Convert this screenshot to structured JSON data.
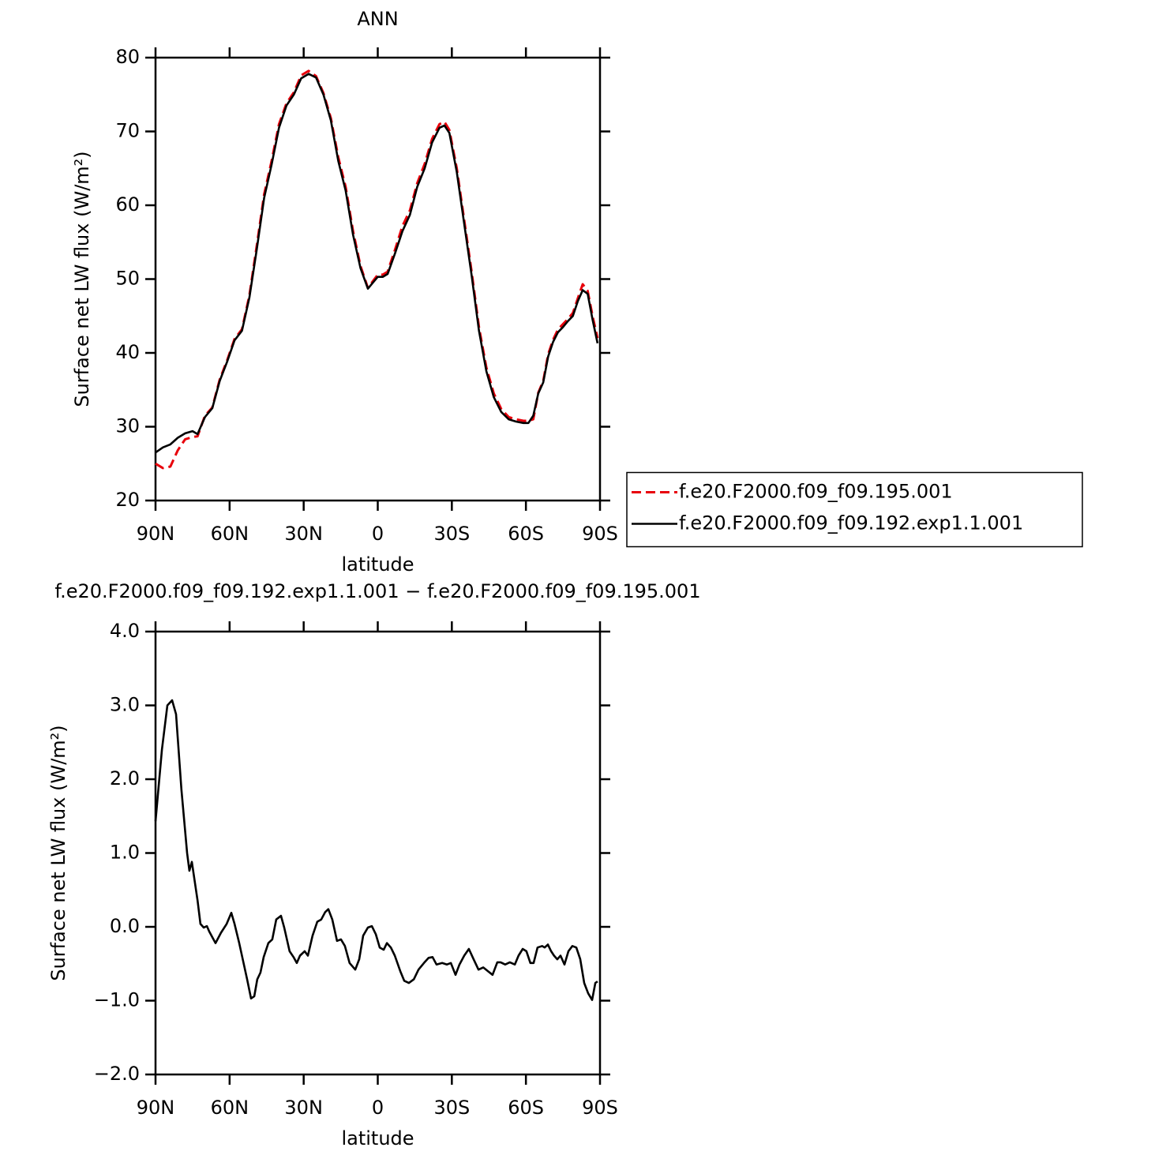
{
  "chart_data": [
    {
      "type": "line",
      "title": "ANN",
      "xlabel": "latitude",
      "ylabel": "Surface net LW flux (W/m²)",
      "x": [
        90,
        87,
        84,
        81,
        78,
        75,
        73,
        70,
        67,
        64,
        61,
        58,
        55,
        52,
        49,
        46,
        43,
        40,
        37,
        34,
        31,
        28,
        25,
        22,
        19,
        16,
        13,
        10,
        7,
        4,
        2,
        0,
        -2,
        -4,
        -7,
        -10,
        -13,
        -16,
        -19,
        -22,
        -25,
        -27,
        -29,
        -32,
        -35,
        -38,
        -41,
        -44,
        -47,
        -50,
        -53,
        -56,
        -59,
        -61,
        -63,
        -65,
        -67,
        -69,
        -71,
        -73,
        -75,
        -77,
        -79,
        -81,
        -83,
        -85,
        -87,
        -89
      ],
      "series": [
        {
          "name": "f.e20.F2000.f09_f09.195.001",
          "color": "#e8000b",
          "linestyle": "dashed",
          "values": [
            25.0,
            24.4,
            24.6,
            26.8,
            28.3,
            28.6,
            28.7,
            31.5,
            32.6,
            36.4,
            39.0,
            41.9,
            43.2,
            47.8,
            54.5,
            61.5,
            66.0,
            71.0,
            73.8,
            75.3,
            77.6,
            78.2,
            77.5,
            75.2,
            71.8,
            66.5,
            62.5,
            56.5,
            51.8,
            48.8,
            49.7,
            50.6,
            50.6,
            51.0,
            54.0,
            57.2,
            59.3,
            63.0,
            65.6,
            69.0,
            71.0,
            71.3,
            70.2,
            65.0,
            58.0,
            51.0,
            43.5,
            38.0,
            34.5,
            32.4,
            31.3,
            31.0,
            30.8,
            30.8,
            31.0,
            34.6,
            36.2,
            39.8,
            41.8,
            43.2,
            43.9,
            44.6,
            45.4,
            47.4,
            49.3,
            48.4,
            45.0,
            42.0
          ]
        },
        {
          "name": "f.e20.F2000.f09_f09.192.exp1.1.001",
          "color": "#000000",
          "linestyle": "solid",
          "values": [
            26.5,
            27.2,
            27.6,
            28.5,
            29.1,
            29.4,
            29.0,
            31.3,
            32.5,
            36.2,
            38.8,
            41.7,
            43.0,
            47.5,
            54.0,
            61.0,
            65.5,
            70.5,
            73.5,
            75.0,
            77.2,
            77.8,
            77.3,
            75.0,
            71.5,
            66.0,
            62.0,
            56.0,
            51.5,
            48.7,
            49.5,
            50.3,
            50.3,
            50.7,
            53.5,
            56.5,
            58.7,
            62.5,
            65.0,
            68.5,
            70.5,
            70.8,
            69.8,
            64.5,
            57.5,
            50.5,
            43.0,
            37.5,
            34.0,
            32.0,
            31.0,
            30.7,
            30.5,
            30.5,
            31.5,
            34.5,
            36.0,
            39.5,
            41.5,
            42.8,
            43.5,
            44.3,
            45.0,
            47.0,
            48.5,
            48.0,
            44.5,
            41.3
          ]
        }
      ],
      "xlim": [
        90,
        -90
      ],
      "xticks": [
        {
          "value": 90,
          "label": "90N"
        },
        {
          "value": 60,
          "label": "60N"
        },
        {
          "value": 30,
          "label": "30N"
        },
        0,
        {
          "value": -30,
          "label": "30S"
        },
        {
          "value": -60,
          "label": "60S"
        },
        {
          "value": -90,
          "label": "90S"
        }
      ],
      "ylim": [
        20,
        80
      ],
      "yticks": [
        20,
        30,
        40,
        50,
        60,
        70,
        80
      ],
      "legend": "right"
    },
    {
      "type": "line",
      "title": "f.e20.F2000.f09_f09.192.exp1.1.001 − f.e20.F2000.f09_f09.195.001",
      "xlabel": "latitude",
      "ylabel": "Surface net LW flux (W/m²)",
      "x": [
        90,
        87.4,
        85.2,
        83.3,
        81.7,
        79.5,
        77.2,
        76.3,
        75.3,
        73,
        71.8,
        70.5,
        69.2,
        68.3,
        65.7,
        63.5,
        61.2,
        59.3,
        58,
        56.1,
        52.9,
        51.3,
        50,
        48.8,
        47.5,
        46.2,
        44.3,
        42.7,
        41.1,
        39.2,
        37.9,
        35.7,
        34.1,
        32.8,
        31.5,
        29.6,
        28.3,
        26.4,
        24.5,
        22.9,
        21.3,
        20,
        18.4,
        16.5,
        14.9,
        13.3,
        11.4,
        9.1,
        7.5,
        5.9,
        4,
        2.4,
        0.8,
        -0.8,
        -2.4,
        -3.7,
        -5.3,
        -6.9,
        -9.1,
        -10.7,
        -12.6,
        -14.6,
        -16.5,
        -18.7,
        -20.6,
        -22.2,
        -23.8,
        -26.1,
        -28,
        -29.6,
        -31.5,
        -33.1,
        -35,
        -36.9,
        -38.8,
        -40.8,
        -42.7,
        -44.6,
        -46.5,
        -48.4,
        -49.7,
        -51.6,
        -53.5,
        -55.5,
        -57,
        -58.7,
        -60.2,
        -61.8,
        -63.1,
        -64.7,
        -66.6,
        -67.6,
        -68.9,
        -70.2,
        -71.4,
        -72.7,
        -74,
        -75.6,
        -77.2,
        -78.8,
        -80.4,
        -82,
        -83.6,
        -85.2,
        -86.8,
        -88.1,
        -89
      ],
      "values": [
        1.43,
        2.4,
        3.0,
        3.07,
        2.88,
        1.86,
        1.0,
        0.76,
        0.88,
        0.36,
        0.04,
        -0.01,
        0.01,
        -0.06,
        -0.22,
        -0.08,
        0.04,
        0.19,
        0.04,
        -0.22,
        -0.71,
        -0.97,
        -0.94,
        -0.71,
        -0.62,
        -0.41,
        -0.22,
        -0.17,
        0.1,
        0.15,
        -0.01,
        -0.33,
        -0.41,
        -0.49,
        -0.39,
        -0.33,
        -0.39,
        -0.12,
        0.07,
        0.1,
        0.2,
        0.24,
        0.1,
        -0.19,
        -0.17,
        -0.26,
        -0.49,
        -0.58,
        -0.44,
        -0.12,
        -0.01,
        0.01,
        -0.1,
        -0.28,
        -0.31,
        -0.22,
        -0.28,
        -0.39,
        -0.6,
        -0.73,
        -0.76,
        -0.71,
        -0.58,
        -0.49,
        -0.42,
        -0.41,
        -0.51,
        -0.49,
        -0.51,
        -0.49,
        -0.65,
        -0.51,
        -0.39,
        -0.3,
        -0.44,
        -0.58,
        -0.55,
        -0.6,
        -0.65,
        -0.48,
        -0.48,
        -0.51,
        -0.48,
        -0.51,
        -0.39,
        -0.3,
        -0.33,
        -0.49,
        -0.49,
        -0.28,
        -0.26,
        -0.28,
        -0.24,
        -0.33,
        -0.39,
        -0.44,
        -0.39,
        -0.51,
        -0.33,
        -0.26,
        -0.28,
        -0.44,
        -0.76,
        -0.9,
        -0.99,
        -0.76,
        -0.74
      ],
      "color": "#000000",
      "xlim": [
        90,
        -90
      ],
      "xticks": [
        {
          "value": 90,
          "label": "90N"
        },
        {
          "value": 60,
          "label": "60N"
        },
        {
          "value": 30,
          "label": "30N"
        },
        0,
        {
          "value": -30,
          "label": "30S"
        },
        {
          "value": -60,
          "label": "60S"
        },
        {
          "value": -90,
          "label": "90S"
        }
      ],
      "ylim": [
        -2,
        4
      ],
      "yticks": [
        {
          "value": -2,
          "label": "−2.0"
        },
        {
          "value": -1,
          "label": "−1.0"
        },
        {
          "value": 0,
          "label": "0.0"
        },
        {
          "value": 1,
          "label": "1.0"
        },
        {
          "value": 2,
          "label": "2.0"
        },
        {
          "value": 3,
          "label": "3.0"
        },
        {
          "value": 4,
          "label": "4.0"
        }
      ]
    }
  ]
}
